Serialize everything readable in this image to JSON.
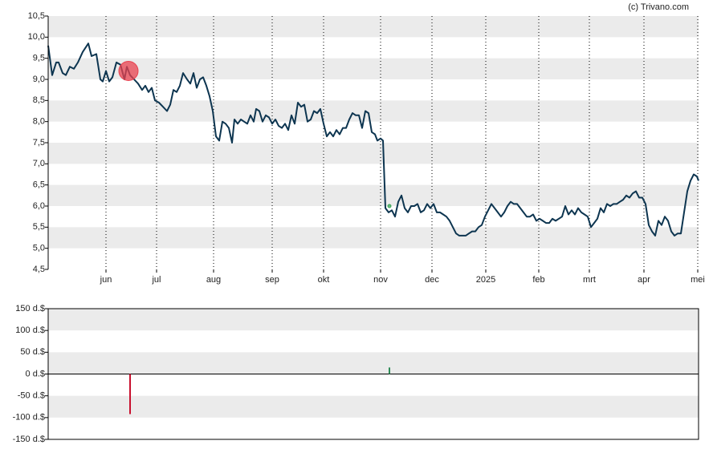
{
  "chart_data": [
    {
      "type": "line",
      "credit": "(c) Trivano.com",
      "xlim": [
        0,
        810
      ],
      "ylim": [
        4.5,
        10.5
      ],
      "xticks": [
        {
          "value": 72,
          "label": "jun"
        },
        {
          "value": 135,
          "label": "jul"
        },
        {
          "value": 206,
          "label": "aug"
        },
        {
          "value": 279,
          "label": "sep"
        },
        {
          "value": 343,
          "label": "okt"
        },
        {
          "value": 414,
          "label": "nov"
        },
        {
          "value": 478,
          "label": "dec"
        },
        {
          "value": 545,
          "label": "2025"
        },
        {
          "value": 611,
          "label": "feb"
        },
        {
          "value": 674,
          "label": "mrt"
        },
        {
          "value": 742,
          "label": "apr"
        },
        {
          "value": 809,
          "label": "mei"
        }
      ],
      "yticks": [
        {
          "value": 4.5,
          "label": "4,5"
        },
        {
          "value": 5,
          "label": "5,0"
        },
        {
          "value": 5.5,
          "label": "5,5"
        },
        {
          "value": 6,
          "label": "6,0"
        },
        {
          "value": 6.5,
          "label": "6,5"
        },
        {
          "value": 7,
          "label": "7,0"
        },
        {
          "value": 7.5,
          "label": "7,5"
        },
        {
          "value": 8,
          "label": "8,0"
        },
        {
          "value": 8.5,
          "label": "8,5"
        },
        {
          "value": 9,
          "label": "9,0"
        },
        {
          "value": 9.5,
          "label": "9,5"
        },
        {
          "value": 10,
          "label": "10,0"
        },
        {
          "value": 10.5,
          "label": "10,5"
        }
      ],
      "grid": "bands",
      "band_color": "#ebebeb",
      "series": [
        {
          "color": "#0d3550",
          "x": [
            0,
            5,
            10,
            13,
            18,
            22,
            27,
            32,
            37,
            43,
            50,
            54,
            60,
            65,
            68,
            72,
            76,
            80,
            85,
            90,
            95,
            98,
            102,
            107,
            112,
            117,
            121,
            125,
            129,
            133,
            138,
            143,
            148,
            152,
            156,
            160,
            164,
            168,
            173,
            177,
            181,
            185,
            189,
            193,
            197,
            201,
            205,
            209,
            213,
            217,
            221,
            225,
            229,
            232,
            236,
            240,
            244,
            248,
            252,
            256,
            259,
            263,
            267,
            271,
            275,
            279,
            283,
            287,
            291,
            295,
            299,
            303,
            307,
            311,
            315,
            319,
            323,
            327,
            331,
            335,
            339,
            343,
            347,
            351,
            355,
            359,
            363,
            367,
            371,
            375,
            379,
            383,
            387,
            391,
            395,
            399,
            403,
            407,
            410,
            414,
            417,
            420,
            424,
            428,
            432,
            436,
            440,
            444,
            448,
            452,
            456,
            460,
            464,
            468,
            472,
            476,
            480,
            484,
            488,
            492,
            496,
            500,
            504,
            508,
            512,
            516,
            520,
            524,
            528,
            532,
            536,
            540,
            544,
            548,
            552,
            556,
            560,
            564,
            568,
            572,
            576,
            580,
            584,
            588,
            592,
            596,
            600,
            604,
            608,
            612,
            616,
            620,
            624,
            628,
            632,
            636,
            640,
            644,
            648,
            652,
            656,
            660,
            664,
            668,
            672,
            676,
            680,
            684,
            688,
            692,
            696,
            700,
            704,
            708,
            712,
            716,
            720,
            724,
            728,
            732,
            736,
            740,
            744,
            748,
            752,
            756,
            760,
            764,
            768,
            772,
            776,
            780,
            784,
            788,
            792,
            796,
            800,
            804,
            808,
            810
          ],
          "values": [
            9.8,
            9.1,
            9.4,
            9.4,
            9.15,
            9.1,
            9.3,
            9.25,
            9.4,
            9.65,
            9.85,
            9.55,
            9.6,
            9.0,
            8.95,
            9.2,
            8.95,
            9.05,
            9.4,
            9.35,
            9.0,
            9.3,
            9.1,
            9.0,
            8.9,
            8.75,
            8.85,
            8.7,
            8.8,
            8.5,
            8.45,
            8.35,
            8.25,
            8.4,
            8.75,
            8.7,
            8.85,
            9.15,
            9.0,
            8.9,
            9.15,
            8.8,
            9.0,
            9.05,
            8.85,
            8.6,
            8.25,
            7.65,
            7.55,
            8.0,
            7.95,
            7.85,
            7.5,
            8.05,
            7.95,
            8.05,
            8.0,
            7.95,
            8.15,
            8.0,
            8.3,
            8.25,
            8.0,
            8.15,
            8.1,
            7.95,
            8.05,
            7.9,
            7.85,
            7.95,
            7.8,
            8.15,
            7.95,
            8.45,
            8.35,
            8.4,
            8.0,
            8.05,
            8.25,
            8.2,
            8.3,
            7.95,
            7.65,
            7.75,
            7.65,
            7.8,
            7.7,
            7.85,
            7.85,
            8.05,
            8.2,
            8.15,
            8.15,
            7.85,
            8.25,
            8.2,
            7.75,
            7.7,
            7.55,
            7.6,
            7.55,
            5.95,
            5.85,
            5.9,
            5.75,
            6.1,
            6.25,
            5.95,
            5.85,
            6.0,
            6.0,
            6.05,
            5.85,
            5.9,
            6.05,
            5.95,
            6.05,
            5.85,
            5.85,
            5.8,
            5.75,
            5.65,
            5.5,
            5.35,
            5.3,
            5.3,
            5.3,
            5.35,
            5.4,
            5.4,
            5.5,
            5.55,
            5.75,
            5.9,
            6.05,
            5.95,
            5.85,
            5.75,
            5.85,
            6.0,
            6.1,
            6.05,
            6.05,
            5.95,
            5.85,
            5.75,
            5.75,
            5.8,
            5.65,
            5.7,
            5.65,
            5.6,
            5.6,
            5.7,
            5.65,
            5.7,
            5.75,
            6.0,
            5.8,
            5.9,
            5.8,
            5.95,
            5.85,
            5.8,
            5.75,
            5.5,
            5.6,
            5.7,
            5.95,
            5.85,
            6.05,
            6.0,
            6.05,
            6.05,
            6.1,
            6.15,
            6.25,
            6.2,
            6.3,
            6.35,
            6.2,
            6.2,
            6.05,
            5.55,
            5.4,
            5.3,
            5.65,
            5.55,
            5.75,
            5.65,
            5.4,
            5.3,
            5.35,
            5.35,
            5.85,
            6.35,
            6.6,
            6.75,
            6.7,
            6.6
          ]
        }
      ],
      "markers": {
        "x": [
          100,
          425
        ],
        "values": [
          9.2,
          6.0
        ],
        "colors": [
          "#e8414f",
          "#3aa655"
        ],
        "sizes": [
          12,
          2
        ]
      }
    },
    {
      "type": "bar",
      "xlim": [
        0,
        810
      ],
      "ylim": [
        -150,
        150
      ],
      "yticks": [
        {
          "value": -150,
          "label": "-150 d.$"
        },
        {
          "value": -100,
          "label": "-100 d.$"
        },
        {
          "value": -50,
          "label": "-50 d.$"
        },
        {
          "value": 0,
          "label": "0 d.$"
        },
        {
          "value": 50,
          "label": "50 d.$"
        },
        {
          "value": 100,
          "label": "100 d.$"
        },
        {
          "value": 150,
          "label": "150 d.$"
        }
      ],
      "grid": "bands",
      "band_color": "#ebebeb",
      "x": [
        102,
        425
      ],
      "values": [
        -92,
        15
      ],
      "colors": [
        "#c8102e",
        "#2e8b57"
      ]
    }
  ]
}
